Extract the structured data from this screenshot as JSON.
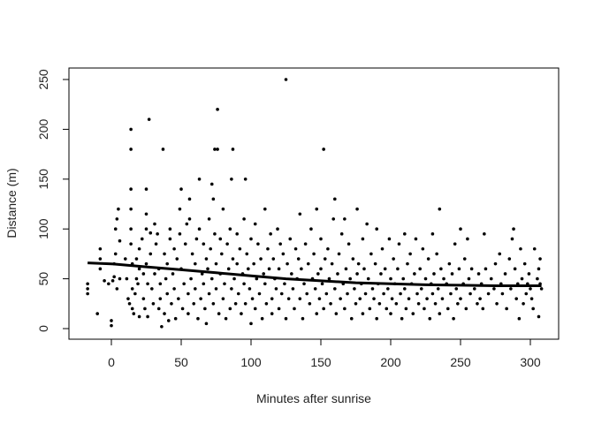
{
  "chart_data": {
    "type": "scatter",
    "title": "",
    "xlabel": "Minutes after sunrise",
    "ylabel": "Distance (m)",
    "xlim": [
      -20,
      310
    ],
    "ylim": [
      0,
      250
    ],
    "x_ticks": [
      0,
      50,
      100,
      150,
      200,
      250,
      300
    ],
    "y_ticks": [
      0,
      50,
      100,
      150,
      200,
      250
    ],
    "x_tick_labels": [
      "0",
      "50",
      "100",
      "150",
      "200",
      "250",
      "300"
    ],
    "y_tick_labels": [
      "0",
      "50",
      "100",
      "150",
      "200",
      "250"
    ],
    "grid": false,
    "point_color": "#000000",
    "trend_color": "#000000",
    "points": [
      [
        -17,
        45
      ],
      [
        -17,
        40
      ],
      [
        -17,
        35
      ],
      [
        -10,
        15
      ],
      [
        -8,
        60
      ],
      [
        -8,
        70
      ],
      [
        -8,
        80
      ],
      [
        -5,
        48
      ],
      [
        -2,
        45
      ],
      [
        0,
        8
      ],
      [
        0,
        3
      ],
      [
        1,
        48
      ],
      [
        2,
        52
      ],
      [
        2,
        65
      ],
      [
        3,
        75
      ],
      [
        3,
        100
      ],
      [
        4,
        40
      ],
      [
        4,
        110
      ],
      [
        5,
        120
      ],
      [
        6,
        50
      ],
      [
        6,
        88
      ],
      [
        10,
        70
      ],
      [
        11,
        50
      ],
      [
        12,
        30
      ],
      [
        13,
        25
      ],
      [
        14,
        200
      ],
      [
        14,
        180
      ],
      [
        14,
        140
      ],
      [
        14,
        120
      ],
      [
        14,
        100
      ],
      [
        14,
        85
      ],
      [
        15,
        65
      ],
      [
        15,
        40
      ],
      [
        15,
        20
      ],
      [
        16,
        15
      ],
      [
        17,
        35
      ],
      [
        18,
        70
      ],
      [
        18,
        50
      ],
      [
        19,
        45
      ],
      [
        20,
        80
      ],
      [
        20,
        60
      ],
      [
        20,
        12
      ],
      [
        22,
        90
      ],
      [
        23,
        55
      ],
      [
        23,
        30
      ],
      [
        24,
        20
      ],
      [
        25,
        100
      ],
      [
        25,
        140
      ],
      [
        25,
        115
      ],
      [
        25,
        65
      ],
      [
        26,
        45
      ],
      [
        26,
        12
      ],
      [
        27,
        210
      ],
      [
        28,
        96
      ],
      [
        28,
        75
      ],
      [
        29,
        40
      ],
      [
        30,
        25
      ],
      [
        31,
        105
      ],
      [
        31,
        55
      ],
      [
        32,
        85
      ],
      [
        33,
        95
      ],
      [
        34,
        20
      ],
      [
        34,
        60
      ],
      [
        35,
        45
      ],
      [
        35,
        30
      ],
      [
        36,
        2
      ],
      [
        37,
        180
      ],
      [
        38,
        75
      ],
      [
        38,
        15
      ],
      [
        39,
        50
      ],
      [
        40,
        65
      ],
      [
        40,
        35
      ],
      [
        41,
        8
      ],
      [
        42,
        100
      ],
      [
        42,
        90
      ],
      [
        43,
        25
      ],
      [
        44,
        55
      ],
      [
        45,
        80
      ],
      [
        45,
        40
      ],
      [
        46,
        10
      ],
      [
        47,
        70
      ],
      [
        48,
        30
      ],
      [
        49,
        120
      ],
      [
        49,
        95
      ],
      [
        50,
        140
      ],
      [
        50,
        60
      ],
      [
        51,
        20
      ],
      [
        52,
        45
      ],
      [
        53,
        85
      ],
      [
        54,
        105
      ],
      [
        55,
        35
      ],
      [
        55,
        15
      ],
      [
        56,
        130
      ],
      [
        56,
        110
      ],
      [
        57,
        50
      ],
      [
        58,
        75
      ],
      [
        59,
        25
      ],
      [
        60,
        65
      ],
      [
        60,
        40
      ],
      [
        61,
        90
      ],
      [
        62,
        10
      ],
      [
        63,
        150
      ],
      [
        63,
        100
      ],
      [
        64,
        30
      ],
      [
        65,
        55
      ],
      [
        66,
        85
      ],
      [
        66,
        45
      ],
      [
        67,
        20
      ],
      [
        68,
        70
      ],
      [
        68,
        5
      ],
      [
        69,
        60
      ],
      [
        70,
        110
      ],
      [
        70,
        35
      ],
      [
        71,
        80
      ],
      [
        72,
        145
      ],
      [
        72,
        50
      ],
      [
        73,
        130
      ],
      [
        73,
        25
      ],
      [
        74,
        95
      ],
      [
        74,
        180
      ],
      [
        75,
        65
      ],
      [
        75,
        40
      ],
      [
        76,
        220
      ],
      [
        76,
        180
      ],
      [
        77,
        15
      ],
      [
        78,
        90
      ],
      [
        78,
        55
      ],
      [
        79,
        75
      ],
      [
        80,
        120
      ],
      [
        80,
        30
      ],
      [
        81,
        45
      ],
      [
        82,
        10
      ],
      [
        83,
        85
      ],
      [
        84,
        60
      ],
      [
        85,
        100
      ],
      [
        85,
        20
      ],
      [
        86,
        150
      ],
      [
        86,
        40
      ],
      [
        87,
        180
      ],
      [
        87,
        70
      ],
      [
        88,
        50
      ],
      [
        89,
        25
      ],
      [
        90,
        95
      ],
      [
        90,
        65
      ],
      [
        91,
        35
      ],
      [
        92,
        80
      ],
      [
        93,
        15
      ],
      [
        94,
        55
      ],
      [
        95,
        110
      ],
      [
        95,
        45
      ],
      [
        96,
        150
      ],
      [
        96,
        25
      ],
      [
        97,
        75
      ],
      [
        98,
        60
      ],
      [
        99,
        40
      ],
      [
        100,
        90
      ],
      [
        100,
        5
      ],
      [
        101,
        30
      ],
      [
        102,
        65
      ],
      [
        103,
        105
      ],
      [
        103,
        20
      ],
      [
        104,
        50
      ],
      [
        105,
        85
      ],
      [
        106,
        35
      ],
      [
        107,
        70
      ],
      [
        108,
        10
      ],
      [
        109,
        55
      ],
      [
        110,
        120
      ],
      [
        110,
        45
      ],
      [
        111,
        25
      ],
      [
        112,
        80
      ],
      [
        113,
        60
      ],
      [
        114,
        95
      ],
      [
        115,
        30
      ],
      [
        115,
        15
      ],
      [
        116,
        70
      ],
      [
        117,
        50
      ],
      [
        118,
        40
      ],
      [
        119,
        100
      ],
      [
        120,
        20
      ],
      [
        120,
        60
      ],
      [
        121,
        85
      ],
      [
        122,
        35
      ],
      [
        123,
        75
      ],
      [
        124,
        45
      ],
      [
        125,
        250
      ],
      [
        125,
        10
      ],
      [
        126,
        65
      ],
      [
        127,
        30
      ],
      [
        128,
        90
      ],
      [
        129,
        55
      ],
      [
        130,
        40
      ],
      [
        131,
        20
      ],
      [
        132,
        80
      ],
      [
        133,
        50
      ],
      [
        134,
        70
      ],
      [
        135,
        30
      ],
      [
        135,
        115
      ],
      [
        136,
        60
      ],
      [
        137,
        10
      ],
      [
        138,
        45
      ],
      [
        139,
        85
      ],
      [
        140,
        35
      ],
      [
        141,
        65
      ],
      [
        142,
        25
      ],
      [
        143,
        100
      ],
      [
        144,
        50
      ],
      [
        145,
        75
      ],
      [
        146,
        40
      ],
      [
        147,
        120
      ],
      [
        147,
        15
      ],
      [
        148,
        55
      ],
      [
        149,
        30
      ],
      [
        150,
        90
      ],
      [
        150,
        60
      ],
      [
        151,
        45
      ],
      [
        152,
        180
      ],
      [
        152,
        20
      ],
      [
        153,
        70
      ],
      [
        154,
        35
      ],
      [
        155,
        80
      ],
      [
        156,
        50
      ],
      [
        157,
        25
      ],
      [
        158,
        65
      ],
      [
        159,
        110
      ],
      [
        160,
        130
      ],
      [
        160,
        40
      ],
      [
        161,
        15
      ],
      [
        162,
        55
      ],
      [
        163,
        75
      ],
      [
        164,
        30
      ],
      [
        165,
        95
      ],
      [
        166,
        45
      ],
      [
        167,
        110
      ],
      [
        167,
        20
      ],
      [
        168,
        60
      ],
      [
        169,
        35
      ],
      [
        170,
        85
      ],
      [
        171,
        50
      ],
      [
        172,
        10
      ],
      [
        173,
        70
      ],
      [
        174,
        40
      ],
      [
        175,
        25
      ],
      [
        176,
        120
      ],
      [
        176,
        55
      ],
      [
        177,
        65
      ],
      [
        178,
        30
      ],
      [
        179,
        45
      ],
      [
        180,
        90
      ],
      [
        180,
        15
      ],
      [
        181,
        60
      ],
      [
        182,
        35
      ],
      [
        183,
        105
      ],
      [
        184,
        50
      ],
      [
        185,
        20
      ],
      [
        186,
        75
      ],
      [
        187,
        40
      ],
      [
        188,
        30
      ],
      [
        189,
        65
      ],
      [
        190,
        100
      ],
      [
        190,
        10
      ],
      [
        191,
        45
      ],
      [
        192,
        25
      ],
      [
        193,
        55
      ],
      [
        194,
        80
      ],
      [
        195,
        35
      ],
      [
        196,
        60
      ],
      [
        197,
        20
      ],
      [
        198,
        40
      ],
      [
        199,
        90
      ],
      [
        200,
        50
      ],
      [
        200,
        15
      ],
      [
        201,
        30
      ],
      [
        202,
        70
      ],
      [
        203,
        45
      ],
      [
        204,
        25
      ],
      [
        205,
        60
      ],
      [
        206,
        85
      ],
      [
        207,
        35
      ],
      [
        208,
        10
      ],
      [
        209,
        50
      ],
      [
        210,
        95
      ],
      [
        210,
        40
      ],
      [
        211,
        20
      ],
      [
        212,
        65
      ],
      [
        213,
        30
      ],
      [
        214,
        75
      ],
      [
        215,
        45
      ],
      [
        216,
        15
      ],
      [
        217,
        55
      ],
      [
        218,
        90
      ],
      [
        219,
        35
      ],
      [
        220,
        25
      ],
      [
        221,
        60
      ],
      [
        222,
        40
      ],
      [
        223,
        80
      ],
      [
        224,
        20
      ],
      [
        225,
        50
      ],
      [
        226,
        30
      ],
      [
        227,
        70
      ],
      [
        228,
        10
      ],
      [
        229,
        45
      ],
      [
        230,
        95
      ],
      [
        230,
        35
      ],
      [
        231,
        55
      ],
      [
        232,
        25
      ],
      [
        233,
        75
      ],
      [
        234,
        40
      ],
      [
        235,
        120
      ],
      [
        235,
        15
      ],
      [
        236,
        60
      ],
      [
        237,
        30
      ],
      [
        238,
        50
      ],
      [
        240,
        45
      ],
      [
        241,
        20
      ],
      [
        242,
        65
      ],
      [
        243,
        35
      ],
      [
        244,
        55
      ],
      [
        245,
        10
      ],
      [
        246,
        85
      ],
      [
        247,
        40
      ],
      [
        248,
        25
      ],
      [
        249,
        60
      ],
      [
        250,
        100
      ],
      [
        250,
        30
      ],
      [
        252,
        45
      ],
      [
        253,
        70
      ],
      [
        254,
        20
      ],
      [
        255,
        90
      ],
      [
        256,
        50
      ],
      [
        257,
        35
      ],
      [
        258,
        60
      ],
      [
        260,
        40
      ],
      [
        262,
        25
      ],
      [
        263,
        55
      ],
      [
        264,
        30
      ],
      [
        265,
        45
      ],
      [
        266,
        20
      ],
      [
        267,
        95
      ],
      [
        268,
        60
      ],
      [
        270,
        35
      ],
      [
        272,
        50
      ],
      [
        274,
        40
      ],
      [
        275,
        65
      ],
      [
        276,
        25
      ],
      [
        278,
        75
      ],
      [
        279,
        45
      ],
      [
        280,
        35
      ],
      [
        282,
        55
      ],
      [
        283,
        20
      ],
      [
        285,
        70
      ],
      [
        286,
        40
      ],
      [
        287,
        90
      ],
      [
        288,
        100
      ],
      [
        289,
        60
      ],
      [
        290,
        30
      ],
      [
        291,
        45
      ],
      [
        292,
        10
      ],
      [
        293,
        80
      ],
      [
        294,
        50
      ],
      [
        295,
        25
      ],
      [
        296,
        65
      ],
      [
        297,
        35
      ],
      [
        298,
        45
      ],
      [
        299,
        55
      ],
      [
        300,
        40
      ],
      [
        301,
        30
      ],
      [
        302,
        20
      ],
      [
        303,
        80
      ],
      [
        305,
        50
      ],
      [
        306,
        12
      ],
      [
        306,
        60
      ],
      [
        307,
        45
      ],
      [
        307,
        70
      ],
      [
        308,
        40
      ]
    ],
    "trend": [
      [
        -17,
        66
      ],
      [
        0,
        65
      ],
      [
        25,
        62
      ],
      [
        50,
        59
      ],
      [
        75,
        56
      ],
      [
        100,
        53
      ],
      [
        125,
        50
      ],
      [
        150,
        48
      ],
      [
        175,
        46
      ],
      [
        200,
        45
      ],
      [
        225,
        44
      ],
      [
        250,
        43.5
      ],
      [
        275,
        43
      ],
      [
        308,
        43
      ]
    ]
  }
}
